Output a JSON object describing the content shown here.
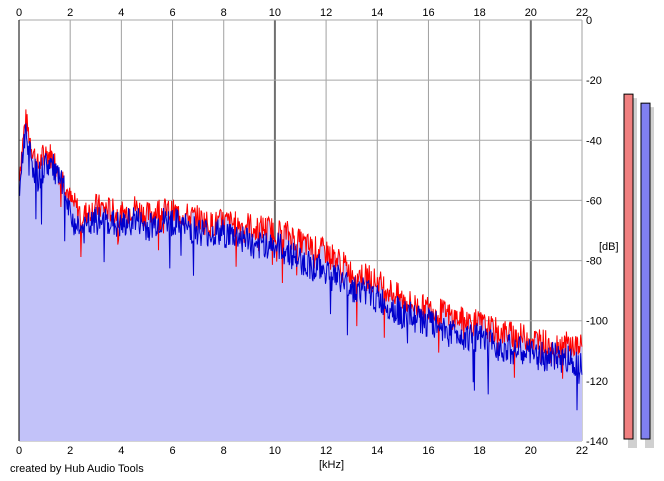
{
  "chart_data": {
    "type": "area",
    "x_axis": {
      "unit_label": "[kHz]",
      "range": [
        0,
        22
      ],
      "ticks": [
        0,
        2,
        4,
        6,
        8,
        10,
        12,
        14,
        16,
        18,
        20,
        22
      ],
      "tick_labels": [
        "0",
        "2",
        "4",
        "6",
        "8",
        "10",
        "12",
        "14",
        "16",
        "18",
        "20",
        "22"
      ]
    },
    "y_axis": {
      "unit_label": "[dB]",
      "range": [
        -140,
        0
      ],
      "ticks": [
        0,
        -20,
        -40,
        -60,
        -80,
        -100,
        -120,
        -140
      ],
      "tick_labels": [
        "0",
        "-20",
        "-40",
        "-60",
        "-80",
        "-100",
        "-120",
        "-140"
      ]
    },
    "grid": true,
    "x": [
      0,
      0.25,
      0.5,
      0.75,
      1,
      1.25,
      1.5,
      1.75,
      2,
      2.5,
      3,
      3.5,
      4,
      4.5,
      5,
      5.5,
      6,
      6.5,
      7,
      7.5,
      8,
      8.5,
      9,
      9.25,
      9.5,
      10,
      10.5,
      11,
      11.5,
      12,
      12.5,
      13,
      13.5,
      14,
      14.5,
      15,
      15.5,
      16,
      16.5,
      17,
      17.5,
      18,
      18.5,
      19,
      19.5,
      20,
      20.5,
      21,
      21.5,
      22
    ],
    "series": [
      {
        "color": "#ff0000",
        "values": [
          -52,
          -33,
          -42,
          -49,
          -44,
          -45,
          -49,
          -53,
          -60,
          -65,
          -62,
          -63,
          -65,
          -62,
          -65,
          -63,
          -64,
          -65,
          -66,
          -68,
          -67,
          -68,
          -68,
          -70,
          -69,
          -70,
          -71,
          -74,
          -76,
          -77,
          -80,
          -84,
          -85,
          -87,
          -90,
          -93,
          -95,
          -96,
          -97,
          -99,
          -100,
          -101,
          -103,
          -104,
          -105,
          -106,
          -107,
          -108,
          -108,
          -109
        ]
      },
      {
        "color": "#0000cc",
        "values": [
          -58,
          -36,
          -47,
          -53,
          -48,
          -48,
          -52,
          -56,
          -66,
          -70,
          -67,
          -67,
          -69,
          -66,
          -69,
          -67,
          -67,
          -69,
          -70,
          -71,
          -71,
          -72,
          -73,
          -78,
          -74,
          -75,
          -77,
          -80,
          -82,
          -83,
          -86,
          -89,
          -90,
          -93,
          -95,
          -98,
          -99,
          -101,
          -102,
          -104,
          -105,
          -106,
          -108,
          -109,
          -110,
          -111,
          -112,
          -112,
          -113,
          -114
        ]
      }
    ],
    "fill_color": "#c2c2f9",
    "level_meters": [
      {
        "color": "#f08080",
        "level_db": -18
      },
      {
        "color": "#8080f0",
        "level_db": -21
      }
    ]
  },
  "footer": {
    "credit": "created by Hub Audio Tools"
  }
}
